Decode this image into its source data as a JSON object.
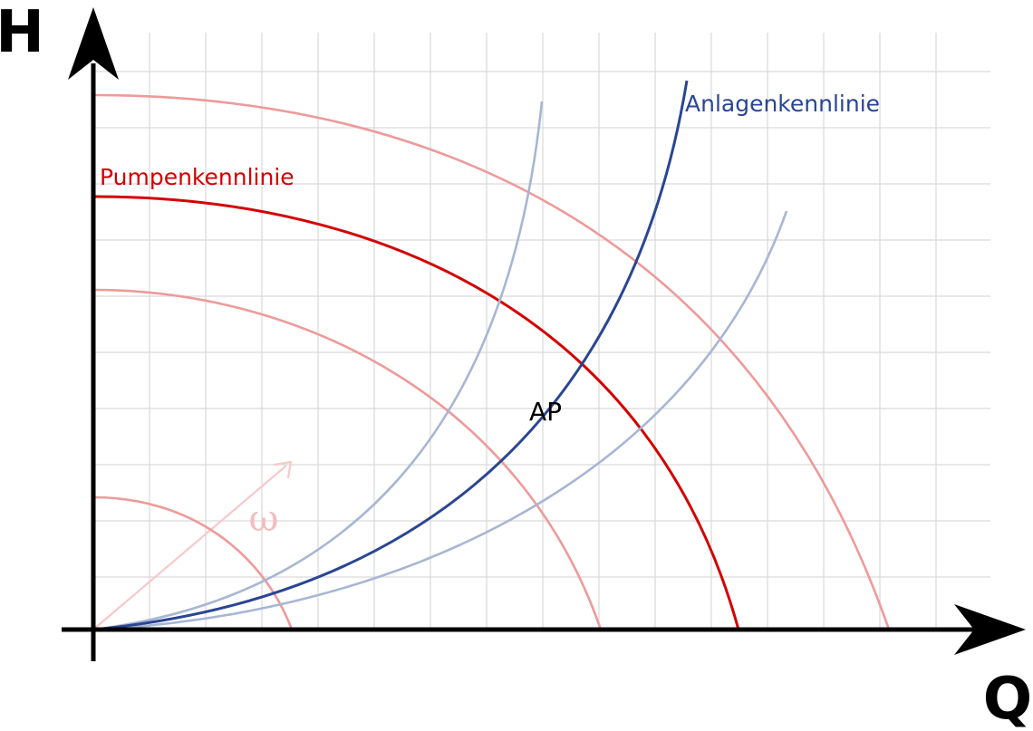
{
  "axes": {
    "y_label": "H",
    "x_label": "Q"
  },
  "labels": {
    "pump_curve": "Pumpenkennlinie",
    "system_curve": "Anlagenkennlinie",
    "operating_point": "AP",
    "speed_symbol": "ω"
  },
  "colors": {
    "axis": "#000000",
    "grid": "#d9d9d9",
    "pump_main": "#d40000",
    "pump_faint": "#ee9a9a",
    "system_main": "#2a4592",
    "system_faint": "#a7b6d3",
    "speed_arrow": "#f7c9c9",
    "speed_symbol": "#f4bcbc",
    "operating_point_label": "#000000"
  },
  "diagram": {
    "pump_curves": [
      {
        "name": "pump-curve-low-speed",
        "style": "faint"
      },
      {
        "name": "pump-curve-mid-speed",
        "style": "faint"
      },
      {
        "name": "pump-curve-nominal",
        "style": "main"
      },
      {
        "name": "pump-curve-high-speed",
        "style": "faint"
      }
    ],
    "system_curves": [
      {
        "name": "system-curve-steep",
        "style": "faint"
      },
      {
        "name": "system-curve-nominal",
        "style": "main"
      },
      {
        "name": "system-curve-flat",
        "style": "faint"
      }
    ]
  }
}
